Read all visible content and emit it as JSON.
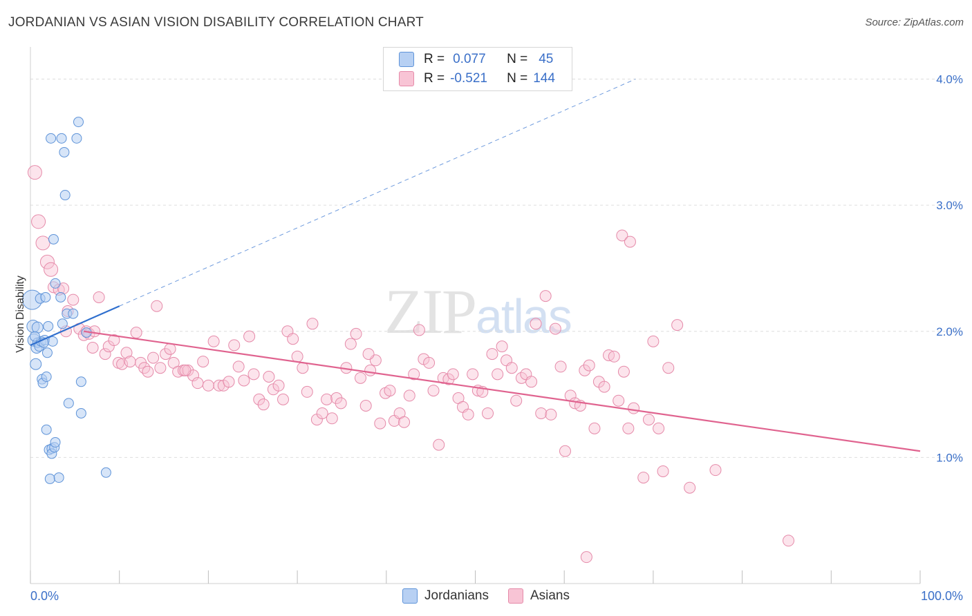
{
  "title": "JORDANIAN VS ASIAN VISION DISABILITY CORRELATION CHART",
  "source": "Source: ZipAtlas.com",
  "watermark": {
    "zip": "ZIP",
    "atlas": "atlas"
  },
  "colors": {
    "jordanians_fill": "#b7d0f3",
    "jordanians_stroke": "#5e93d8",
    "jordanians_line": "#2f6fce",
    "asians_fill": "#f8c4d5",
    "asians_stroke": "#e58aa9",
    "asians_line": "#e0638f",
    "axis_text": "#3a6fc8",
    "grid": "#dddddd"
  },
  "legend": {
    "row1": {
      "r_label": "R =",
      "r_value": "0.077",
      "n_label": "N =",
      "n_value": "45"
    },
    "row2": {
      "r_label": "R =",
      "r_value": "-0.521",
      "n_label": "N =",
      "n_value": "144"
    }
  },
  "bottom_legend": [
    "Jordanians",
    "Asians"
  ],
  "chart_data": {
    "type": "scatter",
    "title": "JORDANIAN VS ASIAN VISION DISABILITY CORRELATION CHART",
    "xlabel": "",
    "ylabel": "Vision Disability",
    "xlim": [
      0,
      100
    ],
    "ylim": [
      0,
      4.2
    ],
    "x_tick_labels": [
      "0.0%",
      "100.0%"
    ],
    "y_ticks": [
      1.0,
      2.0,
      3.0,
      4.0
    ],
    "y_tick_labels": [
      "1.0%",
      "2.0%",
      "3.0%",
      "4.0%"
    ],
    "grid": true,
    "series": [
      {
        "name": "Jordanians",
        "r": 0.077,
        "n": 45,
        "trend": {
          "x": [
            0,
            10
          ],
          "y": [
            1.89,
            2.2
          ]
        },
        "trend_extension": {
          "x": [
            10,
            68
          ],
          "y": [
            2.2,
            4.0
          ]
        },
        "points": [
          [
            0.2,
            2.25,
            14
          ],
          [
            0.3,
            2.04,
            9
          ],
          [
            0.4,
            1.93,
            9
          ],
          [
            0.6,
            1.74,
            8
          ],
          [
            0.7,
            1.87,
            8
          ],
          [
            0.8,
            2.03,
            8
          ],
          [
            0.8,
            1.91,
            7
          ],
          [
            1.0,
            1.88,
            7
          ],
          [
            1.1,
            2.26,
            7
          ],
          [
            1.2,
            1.92,
            7
          ],
          [
            1.3,
            1.62,
            7
          ],
          [
            1.4,
            1.59,
            7
          ],
          [
            1.6,
            1.93,
            7
          ],
          [
            1.7,
            2.27,
            7
          ],
          [
            1.8,
            1.64,
            7
          ],
          [
            1.8,
            1.22,
            7
          ],
          [
            1.9,
            1.83,
            7
          ],
          [
            2.0,
            2.04,
            7
          ],
          [
            2.1,
            1.06,
            7
          ],
          [
            2.2,
            0.83,
            7
          ],
          [
            2.3,
            3.53,
            7
          ],
          [
            2.4,
            1.07,
            7
          ],
          [
            2.4,
            1.03,
            7
          ],
          [
            2.6,
            2.73,
            7
          ],
          [
            2.7,
            1.08,
            7
          ],
          [
            2.8,
            2.38,
            7
          ],
          [
            2.8,
            1.12,
            7
          ],
          [
            3.2,
            0.84,
            7
          ],
          [
            3.4,
            2.27,
            7
          ],
          [
            3.5,
            3.53,
            7
          ],
          [
            3.6,
            2.06,
            7
          ],
          [
            3.8,
            3.42,
            7
          ],
          [
            3.9,
            3.08,
            7
          ],
          [
            4.1,
            2.14,
            7
          ],
          [
            4.3,
            1.43,
            7
          ],
          [
            4.8,
            2.14,
            7
          ],
          [
            5.2,
            3.53,
            7
          ],
          [
            5.4,
            3.66,
            7
          ],
          [
            5.7,
            1.6,
            7
          ],
          [
            5.7,
            1.35,
            7
          ],
          [
            6.3,
            1.99,
            7
          ],
          [
            8.5,
            0.88,
            7
          ],
          [
            0.5,
            1.96,
            7
          ],
          [
            1.5,
            1.91,
            7
          ],
          [
            2.5,
            1.92,
            7
          ]
        ]
      },
      {
        "name": "Asians",
        "r": -0.521,
        "n": 144,
        "trend": {
          "x": [
            6,
            100
          ],
          "y": [
            2.0,
            1.05
          ]
        },
        "points": [
          [
            0.5,
            3.26,
            10
          ],
          [
            0.9,
            2.87,
            10
          ],
          [
            1.4,
            2.7,
            10
          ],
          [
            1.9,
            2.55,
            10
          ],
          [
            2.3,
            2.49,
            10
          ],
          [
            2.6,
            2.35,
            8
          ],
          [
            3.2,
            2.33,
            8
          ],
          [
            3.7,
            2.34,
            8
          ],
          [
            4.2,
            2.16,
            8
          ],
          [
            4.8,
            2.25,
            8
          ],
          [
            5.5,
            2.02,
            8
          ],
          [
            6.0,
            1.97,
            8
          ],
          [
            6.3,
            2.0,
            8
          ],
          [
            6.6,
            1.98,
            8
          ],
          [
            7.2,
            2.0,
            8
          ],
          [
            7.7,
            2.27,
            8
          ],
          [
            8.4,
            1.82,
            8
          ],
          [
            8.8,
            1.88,
            8
          ],
          [
            9.4,
            1.93,
            8
          ],
          [
            9.9,
            1.75,
            8
          ],
          [
            10.3,
            1.74,
            8
          ],
          [
            10.8,
            1.83,
            8
          ],
          [
            11.2,
            1.76,
            8
          ],
          [
            11.9,
            1.99,
            8
          ],
          [
            12.4,
            1.75,
            8
          ],
          [
            12.8,
            1.71,
            8
          ],
          [
            13.2,
            1.68,
            8
          ],
          [
            13.8,
            1.79,
            8
          ],
          [
            14.2,
            2.2,
            8
          ],
          [
            14.6,
            1.71,
            8
          ],
          [
            15.2,
            1.82,
            8
          ],
          [
            15.7,
            1.86,
            8
          ],
          [
            16.1,
            1.75,
            8
          ],
          [
            16.6,
            1.68,
            8
          ],
          [
            17.2,
            1.69,
            8
          ],
          [
            17.7,
            1.69,
            8
          ],
          [
            18.3,
            1.65,
            8
          ],
          [
            18.8,
            1.59,
            8
          ],
          [
            19.4,
            1.76,
            8
          ],
          [
            20.0,
            1.57,
            8
          ],
          [
            20.6,
            1.92,
            8
          ],
          [
            21.2,
            1.57,
            8
          ],
          [
            21.7,
            1.57,
            8
          ],
          [
            22.3,
            1.6,
            8
          ],
          [
            22.9,
            1.89,
            8
          ],
          [
            23.4,
            1.72,
            8
          ],
          [
            24.0,
            1.61,
            8
          ],
          [
            24.6,
            1.96,
            8
          ],
          [
            25.1,
            1.66,
            8
          ],
          [
            25.7,
            1.46,
            8
          ],
          [
            26.2,
            1.42,
            8
          ],
          [
            26.8,
            1.64,
            8
          ],
          [
            27.3,
            1.54,
            8
          ],
          [
            27.9,
            1.57,
            8
          ],
          [
            28.4,
            1.46,
            8
          ],
          [
            28.9,
            2.0,
            8
          ],
          [
            29.5,
            1.94,
            8
          ],
          [
            30.0,
            1.8,
            8
          ],
          [
            30.6,
            1.71,
            8
          ],
          [
            31.1,
            1.52,
            8
          ],
          [
            31.7,
            2.06,
            8
          ],
          [
            32.2,
            1.3,
            8
          ],
          [
            32.8,
            1.35,
            8
          ],
          [
            33.3,
            1.46,
            8
          ],
          [
            33.9,
            1.31,
            8
          ],
          [
            34.4,
            1.47,
            8
          ],
          [
            34.9,
            1.43,
            8
          ],
          [
            35.5,
            1.71,
            8
          ],
          [
            36.0,
            1.9,
            8
          ],
          [
            36.6,
            1.98,
            8
          ],
          [
            37.1,
            1.63,
            8
          ],
          [
            37.7,
            1.41,
            8
          ],
          [
            38.2,
            1.69,
            8
          ],
          [
            38.8,
            1.77,
            8
          ],
          [
            39.3,
            1.27,
            8
          ],
          [
            39.9,
            1.51,
            8
          ],
          [
            40.4,
            1.53,
            8
          ],
          [
            40.9,
            1.29,
            8
          ],
          [
            41.5,
            1.35,
            8
          ],
          [
            42.0,
            1.28,
            8
          ],
          [
            42.6,
            1.49,
            8
          ],
          [
            43.1,
            1.66,
            8
          ],
          [
            43.7,
            2.01,
            8
          ],
          [
            44.2,
            1.78,
            8
          ],
          [
            44.8,
            1.75,
            8
          ],
          [
            45.3,
            1.53,
            8
          ],
          [
            45.9,
            1.1,
            8
          ],
          [
            46.4,
            1.63,
            8
          ],
          [
            47.0,
            1.62,
            8
          ],
          [
            47.5,
            1.66,
            8
          ],
          [
            48.1,
            1.47,
            8
          ],
          [
            48.6,
            1.4,
            8
          ],
          [
            49.2,
            1.34,
            8
          ],
          [
            49.7,
            1.66,
            8
          ],
          [
            50.3,
            1.53,
            8
          ],
          [
            50.8,
            1.52,
            8
          ],
          [
            51.4,
            1.35,
            8
          ],
          [
            51.9,
            1.82,
            8
          ],
          [
            52.5,
            1.66,
            8
          ],
          [
            53.0,
            1.88,
            8
          ],
          [
            53.5,
            1.77,
            8
          ],
          [
            54.1,
            1.71,
            8
          ],
          [
            54.6,
            1.45,
            8
          ],
          [
            55.2,
            1.63,
            8
          ],
          [
            55.7,
            1.66,
            8
          ],
          [
            56.3,
            1.6,
            8
          ],
          [
            56.8,
            2.06,
            8
          ],
          [
            57.4,
            1.35,
            8
          ],
          [
            57.9,
            2.28,
            8
          ],
          [
            58.5,
            1.34,
            8
          ],
          [
            59.0,
            2.02,
            8
          ],
          [
            59.6,
            1.72,
            8
          ],
          [
            60.1,
            1.05,
            8
          ],
          [
            60.7,
            1.49,
            8
          ],
          [
            61.2,
            1.43,
            8
          ],
          [
            61.8,
            1.41,
            8
          ],
          [
            62.3,
            1.69,
            8
          ],
          [
            62.8,
            1.73,
            8
          ],
          [
            63.4,
            1.23,
            8
          ],
          [
            63.9,
            1.6,
            8
          ],
          [
            64.5,
            1.56,
            8
          ],
          [
            65.0,
            1.81,
            8
          ],
          [
            65.6,
            1.8,
            8
          ],
          [
            66.1,
            1.45,
            8
          ],
          [
            66.7,
            1.68,
            8
          ],
          [
            67.2,
            1.23,
            8
          ],
          [
            66.5,
            2.76,
            8
          ],
          [
            67.4,
            2.71,
            8
          ],
          [
            67.8,
            1.39,
            8
          ],
          [
            68.9,
            0.84,
            8
          ],
          [
            69.5,
            1.3,
            8
          ],
          [
            70.0,
            1.92,
            8
          ],
          [
            70.6,
            1.23,
            8
          ],
          [
            71.1,
            0.89,
            8
          ],
          [
            71.7,
            1.71,
            8
          ],
          [
            72.7,
            2.05,
            8
          ],
          [
            74.1,
            0.76,
            8
          ],
          [
            77.0,
            0.9,
            8
          ],
          [
            85.2,
            0.34,
            8
          ],
          [
            62.5,
            0.21,
            8
          ],
          [
            4.0,
            2.0,
            8
          ],
          [
            7.0,
            1.87,
            8
          ],
          [
            17.4,
            1.69,
            8
          ],
          [
            38.0,
            1.82,
            8
          ]
        ]
      }
    ]
  }
}
